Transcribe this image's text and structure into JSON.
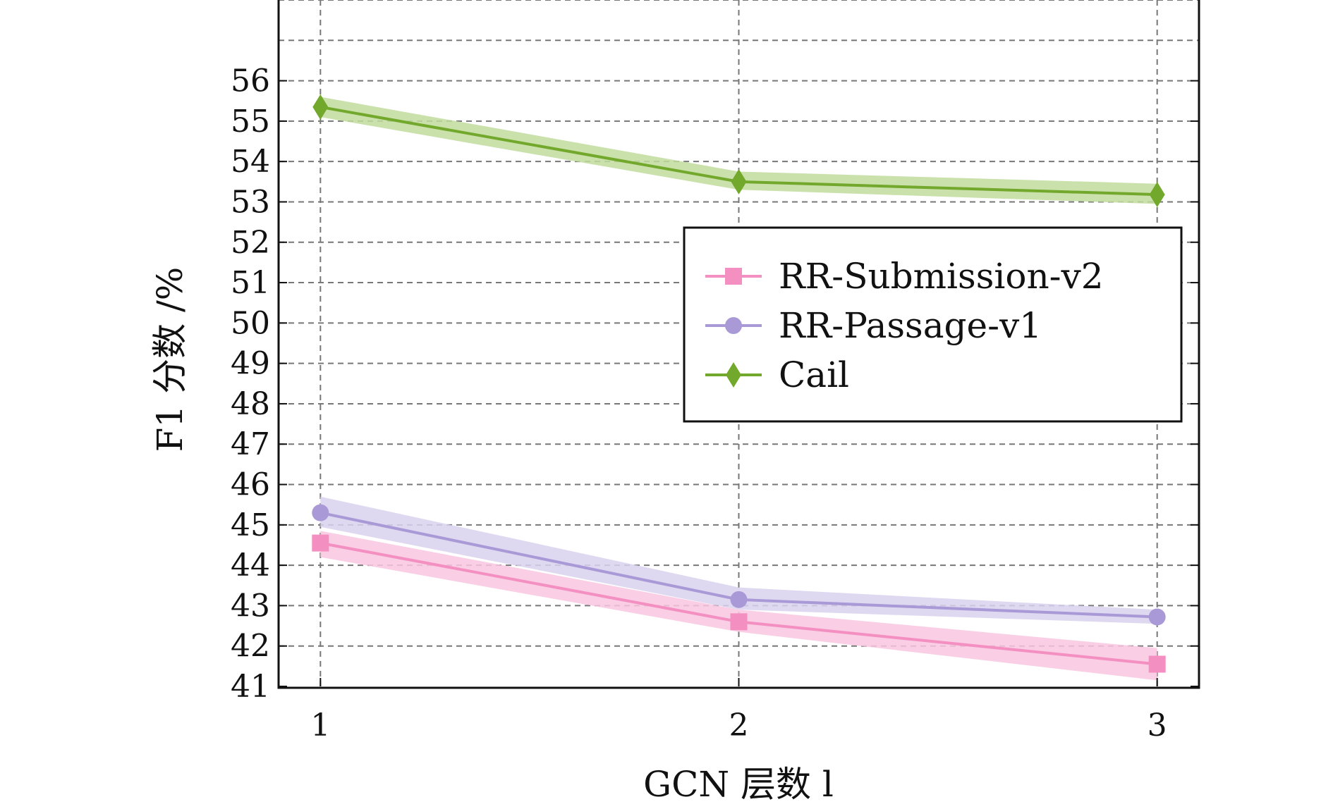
{
  "chart_data": {
    "type": "line",
    "xlabel": "GCN 层数 l",
    "ylabel": "F1 分数 /%",
    "x": [
      1,
      2,
      3
    ],
    "x_ticks": [
      "1",
      "2",
      "3"
    ],
    "xlim": [
      0.9,
      3.1
    ],
    "ylim": [
      41,
      58
    ],
    "y_ticks": [
      "41",
      "42",
      "43",
      "44",
      "45",
      "46",
      "47",
      "48",
      "49",
      "50",
      "51",
      "52",
      "53",
      "54",
      "55",
      "56"
    ],
    "grid": true,
    "legend_position": "center-right",
    "series": [
      {
        "name": "RR-Submission-v2",
        "values": [
          44.55,
          42.6,
          41.55
        ],
        "band_low": [
          44.2,
          42.35,
          41.15
        ],
        "band_high": [
          44.85,
          42.9,
          41.95
        ],
        "color": "#f48fc1",
        "band_color": "#f9c6df",
        "marker": "square"
      },
      {
        "name": "RR-Passage-v1",
        "values": [
          45.3,
          43.15,
          42.72
        ],
        "band_low": [
          44.95,
          42.9,
          42.55
        ],
        "band_high": [
          45.7,
          43.45,
          42.9
        ],
        "color": "#a999d6",
        "band_color": "#d9d1ee",
        "marker": "circle"
      },
      {
        "name": "Cail",
        "values": [
          55.35,
          53.5,
          53.18
        ],
        "band_low": [
          55.1,
          53.3,
          52.95
        ],
        "band_high": [
          55.6,
          53.75,
          53.45
        ],
        "color": "#72a82c",
        "band_color": "#c1dc9c",
        "marker": "diamond"
      }
    ]
  }
}
